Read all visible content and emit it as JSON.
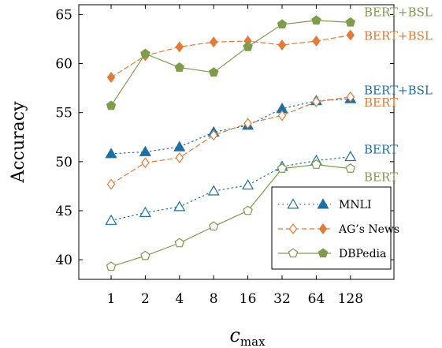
{
  "chart_data": {
    "type": "line",
    "xlabel": "c",
    "xlabel_sub": "max",
    "ylabel": "Accuracy",
    "x_scale": "log2",
    "categories": [
      "1",
      "2",
      "4",
      "8",
      "16",
      "32",
      "64",
      "128"
    ],
    "x": [
      1,
      2,
      4,
      8,
      16,
      32,
      64,
      128
    ],
    "ylim": [
      38,
      66
    ],
    "yticks": [
      40,
      45,
      50,
      55,
      60,
      65
    ],
    "grid": false,
    "legend_position": "lower-right",
    "series": [
      {
        "name": "MNLI",
        "variant": "BERT",
        "color": "#1f6fa3",
        "marker": "triangle-open",
        "dash": "dotted",
        "values": [
          44.0,
          44.8,
          45.4,
          47.0,
          47.6,
          49.5,
          50.1,
          50.5
        ]
      },
      {
        "name": "MNLI",
        "variant": "BERT+BSL",
        "color": "#1f6fa3",
        "marker": "triangle-filled",
        "dash": "dotted",
        "values": [
          50.8,
          51.0,
          51.5,
          53.0,
          53.7,
          55.4,
          56.2,
          56.4
        ]
      },
      {
        "name": "AG's News",
        "variant": "BERT",
        "color": "#e07b39",
        "marker": "diamond-open",
        "dash": "dashed",
        "values": [
          47.7,
          49.9,
          50.4,
          52.7,
          53.9,
          54.7,
          56.1,
          56.6
        ]
      },
      {
        "name": "AG's News",
        "variant": "BERT+BSL",
        "color": "#e07b39",
        "marker": "diamond-filled",
        "dash": "dashed",
        "values": [
          58.6,
          60.8,
          61.7,
          62.2,
          62.3,
          61.9,
          62.3,
          62.9
        ]
      },
      {
        "name": "DBPedia",
        "variant": "BERT",
        "color": "#7d9c4c",
        "marker": "pentagon-open",
        "dash": "solid",
        "values": [
          39.3,
          40.4,
          41.7,
          43.4,
          45.0,
          49.3,
          49.7,
          49.3
        ]
      },
      {
        "name": "DBPedia",
        "variant": "BERT+BSL",
        "color": "#7d9c4c",
        "marker": "pentagon-filled",
        "dash": "solid",
        "values": [
          55.7,
          61.0,
          59.6,
          59.1,
          61.7,
          64.0,
          64.4,
          64.2
        ]
      }
    ],
    "legend": [
      {
        "label": "MNLI",
        "color": "#1f6fa3",
        "marker": "triangle",
        "dash": "dotted"
      },
      {
        "label": "AG’s News",
        "color": "#e07b39",
        "marker": "diamond",
        "dash": "dashed"
      },
      {
        "label": "DBPedia",
        "color": "#7d9c4c",
        "marker": "pentagon",
        "dash": "solid"
      }
    ],
    "annotations": [
      {
        "text": "BERT+BSL",
        "color": "#7d9c4c",
        "anchor_series": 5
      },
      {
        "text": "BERT+BSL",
        "color": "#e07b39",
        "anchor_series": 3
      },
      {
        "text": "BERT+BSL",
        "color": "#1f6fa3",
        "anchor_series": 1
      },
      {
        "text": "BERT",
        "color": "#e07b39",
        "anchor_series": 2
      },
      {
        "text": "BERT",
        "color": "#1f6fa3",
        "anchor_series": 0
      },
      {
        "text": "BERT",
        "color": "#7d9c4c",
        "anchor_series": 4
      }
    ]
  }
}
